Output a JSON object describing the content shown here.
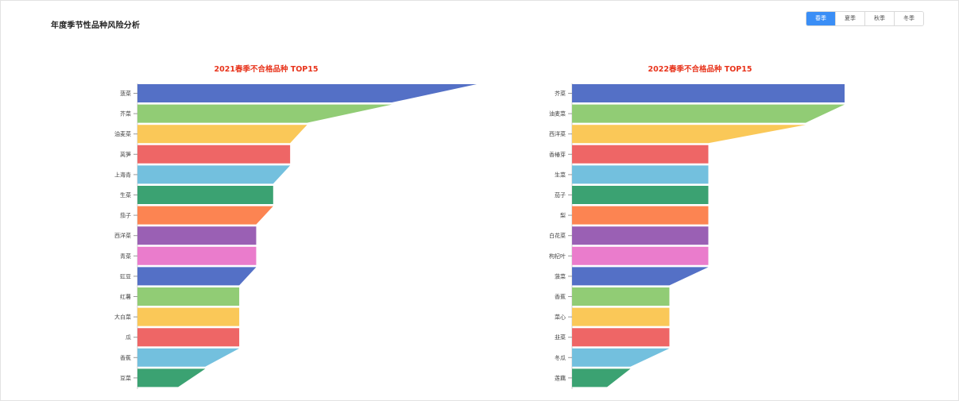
{
  "page": {
    "title": "年度季节性品种风险分析"
  },
  "season_tabs": [
    {
      "label": "春季",
      "active": true
    },
    {
      "label": "夏季",
      "active": false
    },
    {
      "label": "秋季",
      "active": false
    },
    {
      "label": "冬季",
      "active": false
    }
  ],
  "colors": {
    "accent": "#3a8ef6",
    "title_red": "#e8341c",
    "palette": [
      "#5470c6",
      "#91cc75",
      "#fac858",
      "#ee6666",
      "#73c0de",
      "#3ba272",
      "#fc8452",
      "#9a60b4",
      "#ea7ccc"
    ]
  },
  "chart_data": [
    {
      "type": "bar",
      "orientation": "horizontal",
      "shape": "tapered",
      "title": "2021春季不合格品种 TOP15",
      "categories": [
        "菠菜",
        "芥菜",
        "油麦菜",
        "莴笋",
        "上海青",
        "生菜",
        "茄子",
        "西洋菜",
        "青菜",
        "豇豆",
        "红薯",
        "大白菜",
        "瓜",
        "香蕉",
        "豆菜"
      ],
      "values": [
        20,
        15,
        10,
        9,
        9,
        8,
        8,
        7,
        7,
        7,
        6,
        6,
        6,
        6,
        4
      ],
      "xlim": [
        0,
        20
      ],
      "grid": false,
      "legend": "none"
    },
    {
      "type": "bar",
      "orientation": "horizontal",
      "shape": "tapered",
      "title": "2022春季不合格品种 TOP15",
      "categories": [
        "芥菜",
        "油麦菜",
        "西洋菜",
        "香椿芽",
        "生菜",
        "茄子",
        "梨",
        "白花菜",
        "枸杞叶",
        "菠菜",
        "香蕉",
        "菜心",
        "韭菜",
        "冬瓜",
        "莲藕"
      ],
      "values": [
        14,
        14,
        12,
        7,
        7,
        7,
        7,
        7,
        7,
        7,
        5,
        5,
        5,
        5,
        3
      ],
      "xlim": [
        0,
        14
      ],
      "grid": false,
      "legend": "none"
    }
  ]
}
